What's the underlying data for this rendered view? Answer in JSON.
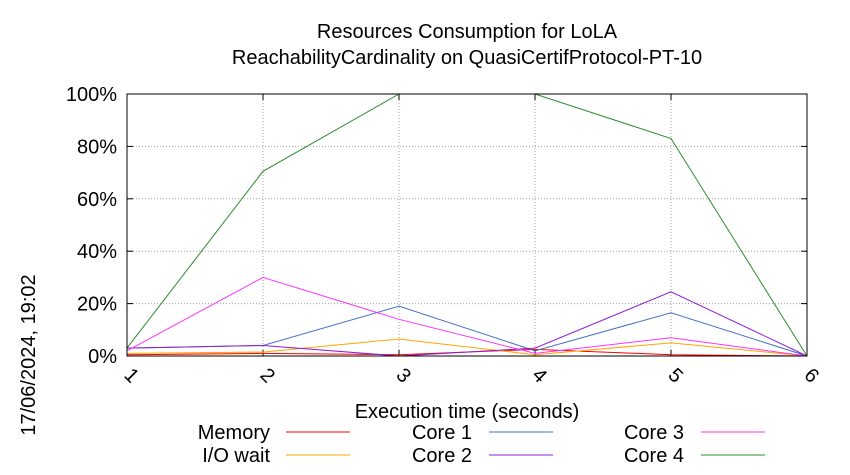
{
  "chart_data": {
    "type": "line",
    "title_line1": "Resources Consumption for LoLA",
    "title_line2": "ReachabilityCardinality on QuasiCertifProtocol-PT-10",
    "xlabel": "Execution time (seconds)",
    "side_label": "17/06/2024, 19:02",
    "x": [
      1,
      2,
      3,
      4,
      5,
      6
    ],
    "x_ticks": [
      "1",
      "2",
      "3",
      "4",
      "5",
      "6"
    ],
    "y_ticks": [
      "0%",
      "20%",
      "40%",
      "60%",
      "80%",
      "100%"
    ],
    "xlim": [
      1,
      6
    ],
    "ylim": [
      0,
      100
    ],
    "grid": true,
    "legend_position": "bottom",
    "series": [
      {
        "name": "Memory",
        "color": "#ff0000",
        "values": [
          0.5,
          1.0,
          0.5,
          2.5,
          0.5,
          0
        ]
      },
      {
        "name": "I/O wait",
        "color": "#ffa500",
        "values": [
          1.0,
          1.5,
          6.5,
          0.5,
          5.0,
          0
        ]
      },
      {
        "name": "Core 1",
        "color": "#4472c4",
        "values": [
          3.0,
          4.0,
          19.0,
          2.0,
          16.5,
          0
        ]
      },
      {
        "name": "Core 2",
        "color": "#8b1fd6",
        "values": [
          3.0,
          4.0,
          0.0,
          3.0,
          24.5,
          0
        ]
      },
      {
        "name": "Core 3",
        "color": "#ff33ff",
        "values": [
          2.0,
          30.0,
          14.0,
          1.0,
          7.0,
          0
        ]
      },
      {
        "name": "Core 4",
        "color": "#2e8b2e",
        "values": [
          3.0,
          70.5,
          100.0,
          100.0,
          83.0,
          0
        ]
      }
    ]
  }
}
